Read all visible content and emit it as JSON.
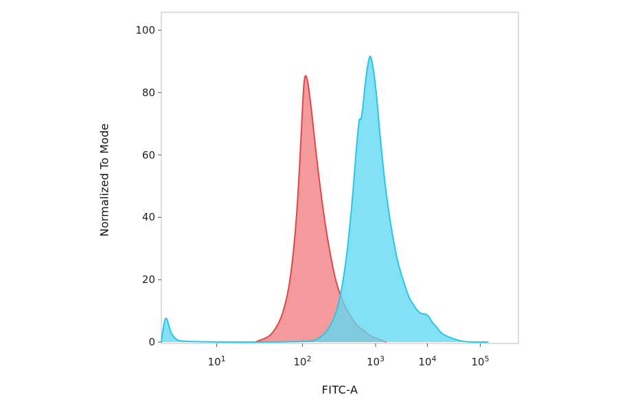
{
  "chart_data": {
    "type": "area",
    "subtype": "flow-cytometry-histogram",
    "title": "",
    "xlabel": "FITC-A",
    "ylabel": "Normalized To Mode",
    "background_color": "#ffffff",
    "plot_border_color": "#bcbcbc",
    "tick_color": "#555555",
    "x_axis": {
      "scale": "log-biexponential",
      "tick_base": "10",
      "tick_exponents": [
        1,
        2,
        3,
        4,
        5
      ]
    },
    "y_axis": {
      "ticks": [
        0,
        20,
        40,
        60,
        80,
        100
      ],
      "range": [
        0,
        100
      ]
    },
    "x_scale_control": [
      [
        0.4,
        0.0
      ],
      [
        1,
        0.155
      ],
      [
        2,
        0.395
      ],
      [
        3,
        0.6
      ],
      [
        4,
        0.745
      ],
      [
        5,
        0.893
      ],
      [
        5.75,
        1.0
      ]
    ],
    "grid": false,
    "legend": "none",
    "series": [
      {
        "name": "control-red",
        "stroke": "#e04648",
        "fill": "rgba(238,92,96,0.62)",
        "peak_x_approx": 110,
        "peak_y": 86,
        "points_log10": [
          [
            1.45,
            0
          ],
          [
            1.55,
            1
          ],
          [
            1.62,
            2
          ],
          [
            1.68,
            4
          ],
          [
            1.74,
            7
          ],
          [
            1.79,
            11
          ],
          [
            1.84,
            17
          ],
          [
            1.88,
            25
          ],
          [
            1.92,
            36
          ],
          [
            1.95,
            48
          ],
          [
            1.98,
            63
          ],
          [
            2.0,
            75
          ],
          [
            2.02,
            83
          ],
          [
            2.04,
            86
          ],
          [
            2.07,
            84
          ],
          [
            2.1,
            79
          ],
          [
            2.14,
            71
          ],
          [
            2.18,
            62
          ],
          [
            2.23,
            52
          ],
          [
            2.28,
            43
          ],
          [
            2.33,
            35
          ],
          [
            2.39,
            27
          ],
          [
            2.45,
            20
          ],
          [
            2.52,
            15
          ],
          [
            2.59,
            11
          ],
          [
            2.67,
            8
          ],
          [
            2.75,
            5
          ],
          [
            2.83,
            4
          ],
          [
            2.92,
            2
          ],
          [
            3.05,
            1
          ],
          [
            3.2,
            0
          ]
        ]
      },
      {
        "name": "stained-cyan",
        "stroke": "#26c6e6",
        "fill": "rgba(96,216,242,0.78)",
        "peak_x_approx": 850,
        "peak_y": 92,
        "points_log10": [
          [
            0.4,
            0
          ],
          [
            0.43,
            7
          ],
          [
            0.46,
            8
          ],
          [
            0.5,
            3
          ],
          [
            0.55,
            1
          ],
          [
            0.62,
            0
          ],
          [
            2.1,
            0
          ],
          [
            2.22,
            1
          ],
          [
            2.32,
            3
          ],
          [
            2.4,
            6
          ],
          [
            2.47,
            10
          ],
          [
            2.53,
            16
          ],
          [
            2.59,
            25
          ],
          [
            2.64,
            35
          ],
          [
            2.69,
            48
          ],
          [
            2.73,
            60
          ],
          [
            2.76,
            68
          ],
          [
            2.78,
            72
          ],
          [
            2.8,
            71
          ],
          [
            2.82,
            74
          ],
          [
            2.85,
            81
          ],
          [
            2.88,
            87
          ],
          [
            2.91,
            91
          ],
          [
            2.93,
            92
          ],
          [
            2.96,
            89
          ],
          [
            2.99,
            84
          ],
          [
            3.03,
            77
          ],
          [
            3.07,
            69
          ],
          [
            3.11,
            62
          ],
          [
            3.16,
            54
          ],
          [
            3.21,
            47
          ],
          [
            3.27,
            40
          ],
          [
            3.33,
            34
          ],
          [
            3.41,
            27
          ],
          [
            3.49,
            22
          ],
          [
            3.57,
            18
          ],
          [
            3.65,
            14
          ],
          [
            3.73,
            12
          ],
          [
            3.81,
            10
          ],
          [
            3.89,
            9
          ],
          [
            3.97,
            9
          ],
          [
            4.04,
            8
          ],
          [
            4.1,
            6
          ],
          [
            4.17,
            5
          ],
          [
            4.25,
            3
          ],
          [
            4.35,
            2
          ],
          [
            4.5,
            1
          ],
          [
            4.7,
            0
          ],
          [
            5.15,
            0
          ]
        ]
      }
    ]
  }
}
